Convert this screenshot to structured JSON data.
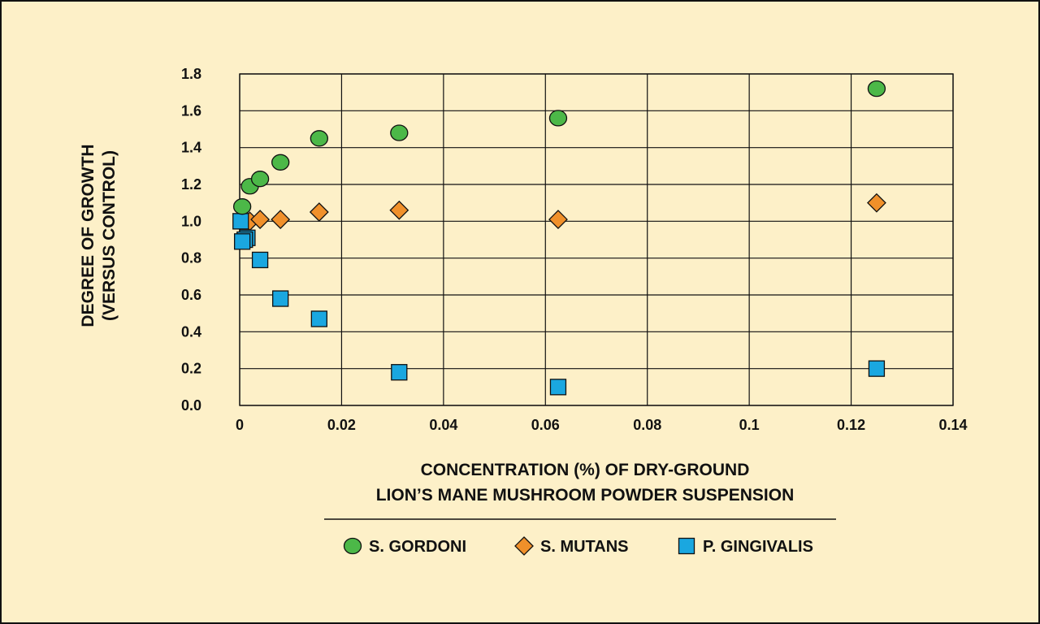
{
  "chart_data": {
    "type": "scatter",
    "xlabel": [
      "CONCENTRATION (%) OF DRY-GROUND",
      "LION’S MANE MUSHROOM POWDER SUSPENSION"
    ],
    "ylabel": [
      "DEGREE OF GROWTH",
      "(VERSUS CONTROL)"
    ],
    "xlim": [
      0,
      0.14
    ],
    "ylim": [
      0,
      1.8
    ],
    "x_ticks": [
      0,
      0.02,
      0.04,
      0.06,
      0.08,
      0.1,
      0.12,
      0.14
    ],
    "x_tick_labels": [
      "0",
      "0.02",
      "0.04",
      "0.06",
      "0.08",
      "0.1",
      "0.12",
      "0.14"
    ],
    "y_ticks": [
      0,
      0.2,
      0.4,
      0.6,
      0.8,
      1.0,
      1.2,
      1.4,
      1.6,
      1.8
    ],
    "y_tick_labels": [
      "0.0",
      "0.2",
      "0.4",
      "0.6",
      "0.8",
      "1.0",
      "1.2",
      "1.4",
      "1.6",
      "1.8"
    ],
    "grid": true,
    "legend_position": "bottom",
    "series": [
      {
        "name": "S. GORDONI",
        "marker": "circle",
        "color": "#4cb848",
        "points": [
          [
            0.0005,
            1.08
          ],
          [
            0.002,
            1.19
          ],
          [
            0.004,
            1.23
          ],
          [
            0.008,
            1.32
          ],
          [
            0.0156,
            1.45
          ],
          [
            0.0313,
            1.48
          ],
          [
            0.0625,
            1.56
          ],
          [
            0.125,
            1.72
          ]
        ]
      },
      {
        "name": "S. MUTANS",
        "marker": "diamond",
        "color": "#f0902a",
        "points": [
          [
            0.002,
            1.0
          ],
          [
            0.004,
            1.01
          ],
          [
            0.008,
            1.01
          ],
          [
            0.0156,
            1.05
          ],
          [
            0.0313,
            1.06
          ],
          [
            0.0625,
            1.01
          ],
          [
            0.125,
            1.1
          ]
        ]
      },
      {
        "name": "P. GINGIVALIS",
        "marker": "square",
        "color": "#1aa7e0",
        "points": [
          [
            0.0002,
            1.0
          ],
          [
            0.0015,
            0.91
          ],
          [
            0.001,
            0.9
          ],
          [
            0.0005,
            0.89
          ],
          [
            0.004,
            0.79
          ],
          [
            0.008,
            0.58
          ],
          [
            0.0156,
            0.47
          ],
          [
            0.0313,
            0.18
          ],
          [
            0.0625,
            0.1
          ],
          [
            0.125,
            0.2
          ]
        ]
      }
    ]
  }
}
